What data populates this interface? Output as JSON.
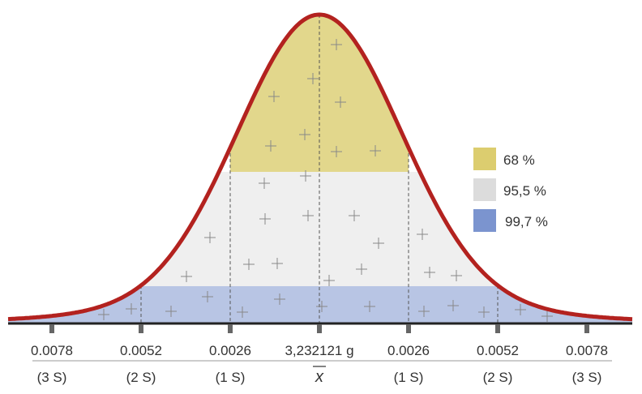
{
  "diagram": {
    "distribution": "normal",
    "colors": {
      "curve": "#b3221f",
      "band_68": "#e2d78c",
      "band_95_5": "#efefef",
      "band_99_7": "#b8c5e4",
      "legend_68": "#dccd6f",
      "legend_95_5": "#dcdcdc",
      "legend_99_7": "#7b94cf"
    },
    "legend": [
      {
        "label": "68 %",
        "color": "#dccd6f"
      },
      {
        "label": "95,5 %",
        "color": "#dcdcdc"
      },
      {
        "label": "99,7 %",
        "color": "#7b94cf"
      }
    ],
    "axis": {
      "values": [
        "0.0078",
        "0.0052",
        "0.0026",
        "3,232121 g",
        "0.0026",
        "0.0052",
        "0.0078"
      ],
      "sigma_labels": [
        "(3 S)",
        "(2 S)",
        "(1 S)",
        "x",
        "(1 S)",
        "(2 S)",
        "(3 S)"
      ]
    }
  }
}
